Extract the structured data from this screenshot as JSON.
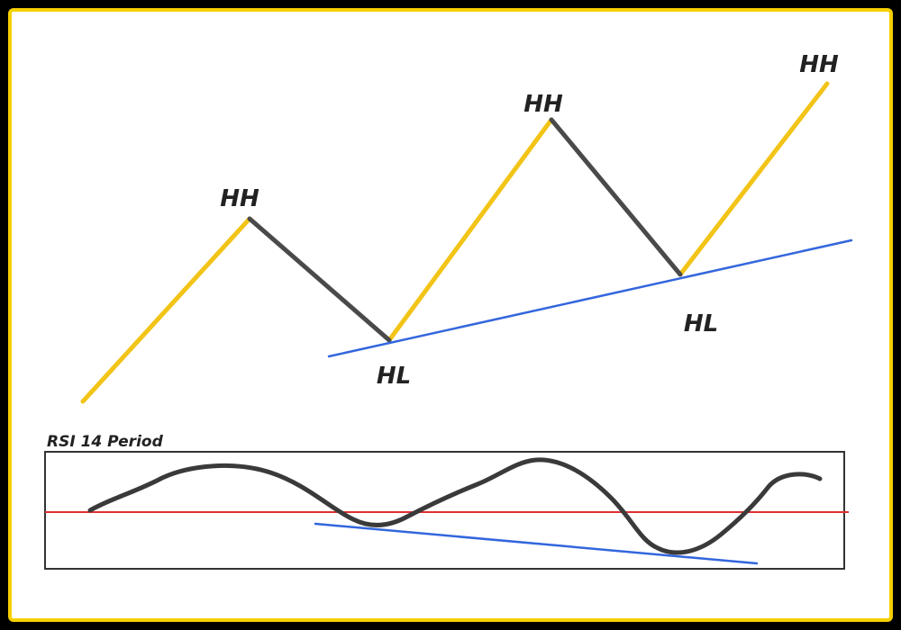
{
  "diagram": {
    "peak_label": "HH",
    "trough_label": "HL",
    "rsi_title": "RSI 14 Period"
  },
  "colors": {
    "frame_border": "#f5d000",
    "up_leg": "#f2c417",
    "down_leg": "#4a4a4a",
    "trendline": "#3366dd",
    "midline": "#e03030",
    "rsi_curve": "#3a3a3a"
  }
}
